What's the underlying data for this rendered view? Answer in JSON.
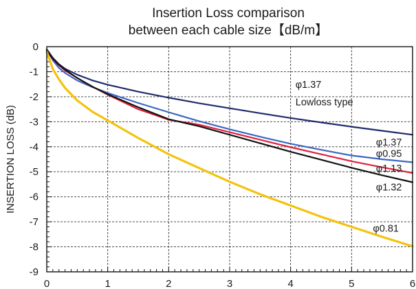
{
  "chart_data": {
    "type": "line",
    "title_lines": [
      "Insertion Loss comparison",
      "between each cable size【dB/m】"
    ],
    "ylabel": "INSERTION LOSS (dB)",
    "xlabel": "",
    "xlim": [
      0,
      6
    ],
    "ylim": [
      -9,
      0
    ],
    "x_ticks": [
      "0",
      "1",
      "2",
      "3",
      "4",
      "5",
      "6"
    ],
    "y_ticks": [
      "0",
      "-1",
      "-2",
      "-3",
      "-4",
      "-5",
      "-6",
      "-7",
      "-8",
      "-9"
    ],
    "grid": true,
    "legend": "none",
    "series": [
      {
        "name": "φ1.37 Lowloss type",
        "color": "#1f2a6b",
        "x": [
          0,
          0.1,
          0.2,
          0.3,
          0.5,
          0.75,
          1,
          1.5,
          2,
          2.5,
          3,
          3.5,
          4,
          4.5,
          5,
          5.5,
          6
        ],
        "y": [
          -0.1,
          -0.45,
          -0.7,
          -0.88,
          -1.12,
          -1.35,
          -1.52,
          -1.8,
          -2.04,
          -2.26,
          -2.46,
          -2.66,
          -2.85,
          -3.03,
          -3.2,
          -3.36,
          -3.52
        ]
      },
      {
        "name": "φ1.37",
        "color": "#3a66c4",
        "x": [
          0,
          0.1,
          0.2,
          0.3,
          0.5,
          0.75,
          1,
          1.5,
          2,
          2.5,
          3,
          3.5,
          4,
          4.5,
          5,
          5.5,
          6
        ],
        "y": [
          -0.12,
          -0.55,
          -0.85,
          -1.05,
          -1.35,
          -1.62,
          -1.85,
          -2.25,
          -2.62,
          -2.98,
          -3.3,
          -3.6,
          -3.88,
          -4.12,
          -4.35,
          -4.5,
          -4.62
        ]
      },
      {
        "name": "φ1.13",
        "color": "#e0203a",
        "x": [
          0,
          0.1,
          0.2,
          0.3,
          0.5,
          0.75,
          1,
          1.5,
          2,
          2.5,
          3,
          3.5,
          4,
          4.5,
          5,
          5.5,
          6
        ],
        "y": [
          -0.15,
          -0.5,
          -0.75,
          -0.95,
          -1.25,
          -1.6,
          -1.92,
          -2.5,
          -2.92,
          -3.12,
          -3.42,
          -3.72,
          -4.02,
          -4.3,
          -4.58,
          -4.82,
          -5.05
        ]
      },
      {
        "name": "φ1.32",
        "color": "#111111",
        "x": [
          0,
          0.1,
          0.2,
          0.3,
          0.5,
          0.75,
          1,
          1.5,
          2,
          2.5,
          3,
          3.5,
          4,
          4.5,
          5,
          5.5,
          6
        ],
        "y": [
          -0.15,
          -0.48,
          -0.72,
          -0.92,
          -1.25,
          -1.6,
          -1.9,
          -2.42,
          -2.9,
          -3.18,
          -3.52,
          -3.86,
          -4.2,
          -4.52,
          -4.84,
          -5.14,
          -5.42
        ]
      },
      {
        "name": "φ0.81",
        "color": "#f4c20d",
        "x": [
          0,
          0.1,
          0.2,
          0.3,
          0.5,
          0.75,
          1,
          1.5,
          2,
          2.5,
          3,
          3.5,
          4,
          4.5,
          5,
          5.5,
          6
        ],
        "y": [
          -0.2,
          -0.9,
          -1.3,
          -1.65,
          -2.15,
          -2.6,
          -2.95,
          -3.65,
          -4.3,
          -4.85,
          -5.4,
          -5.9,
          -6.35,
          -6.8,
          -7.2,
          -7.6,
          -7.98
        ]
      }
    ],
    "annotations": [
      {
        "text": "φ1.37",
        "x": 4.08,
        "y": -1.65
      },
      {
        "text": "Lowloss type",
        "x": 4.08,
        "y": -2.35
      },
      {
        "text": "φ1.37",
        "x": 5.4,
        "y": -3.95
      },
      {
        "text": "φ0.95",
        "x": 5.4,
        "y": -4.4
      },
      {
        "text": "φ1.13",
        "x": 5.4,
        "y": -5.0
      },
      {
        "text": "φ1.32",
        "x": 5.4,
        "y": -5.75
      },
      {
        "text": "φ0.81",
        "x": 5.35,
        "y": -7.4
      }
    ]
  }
}
